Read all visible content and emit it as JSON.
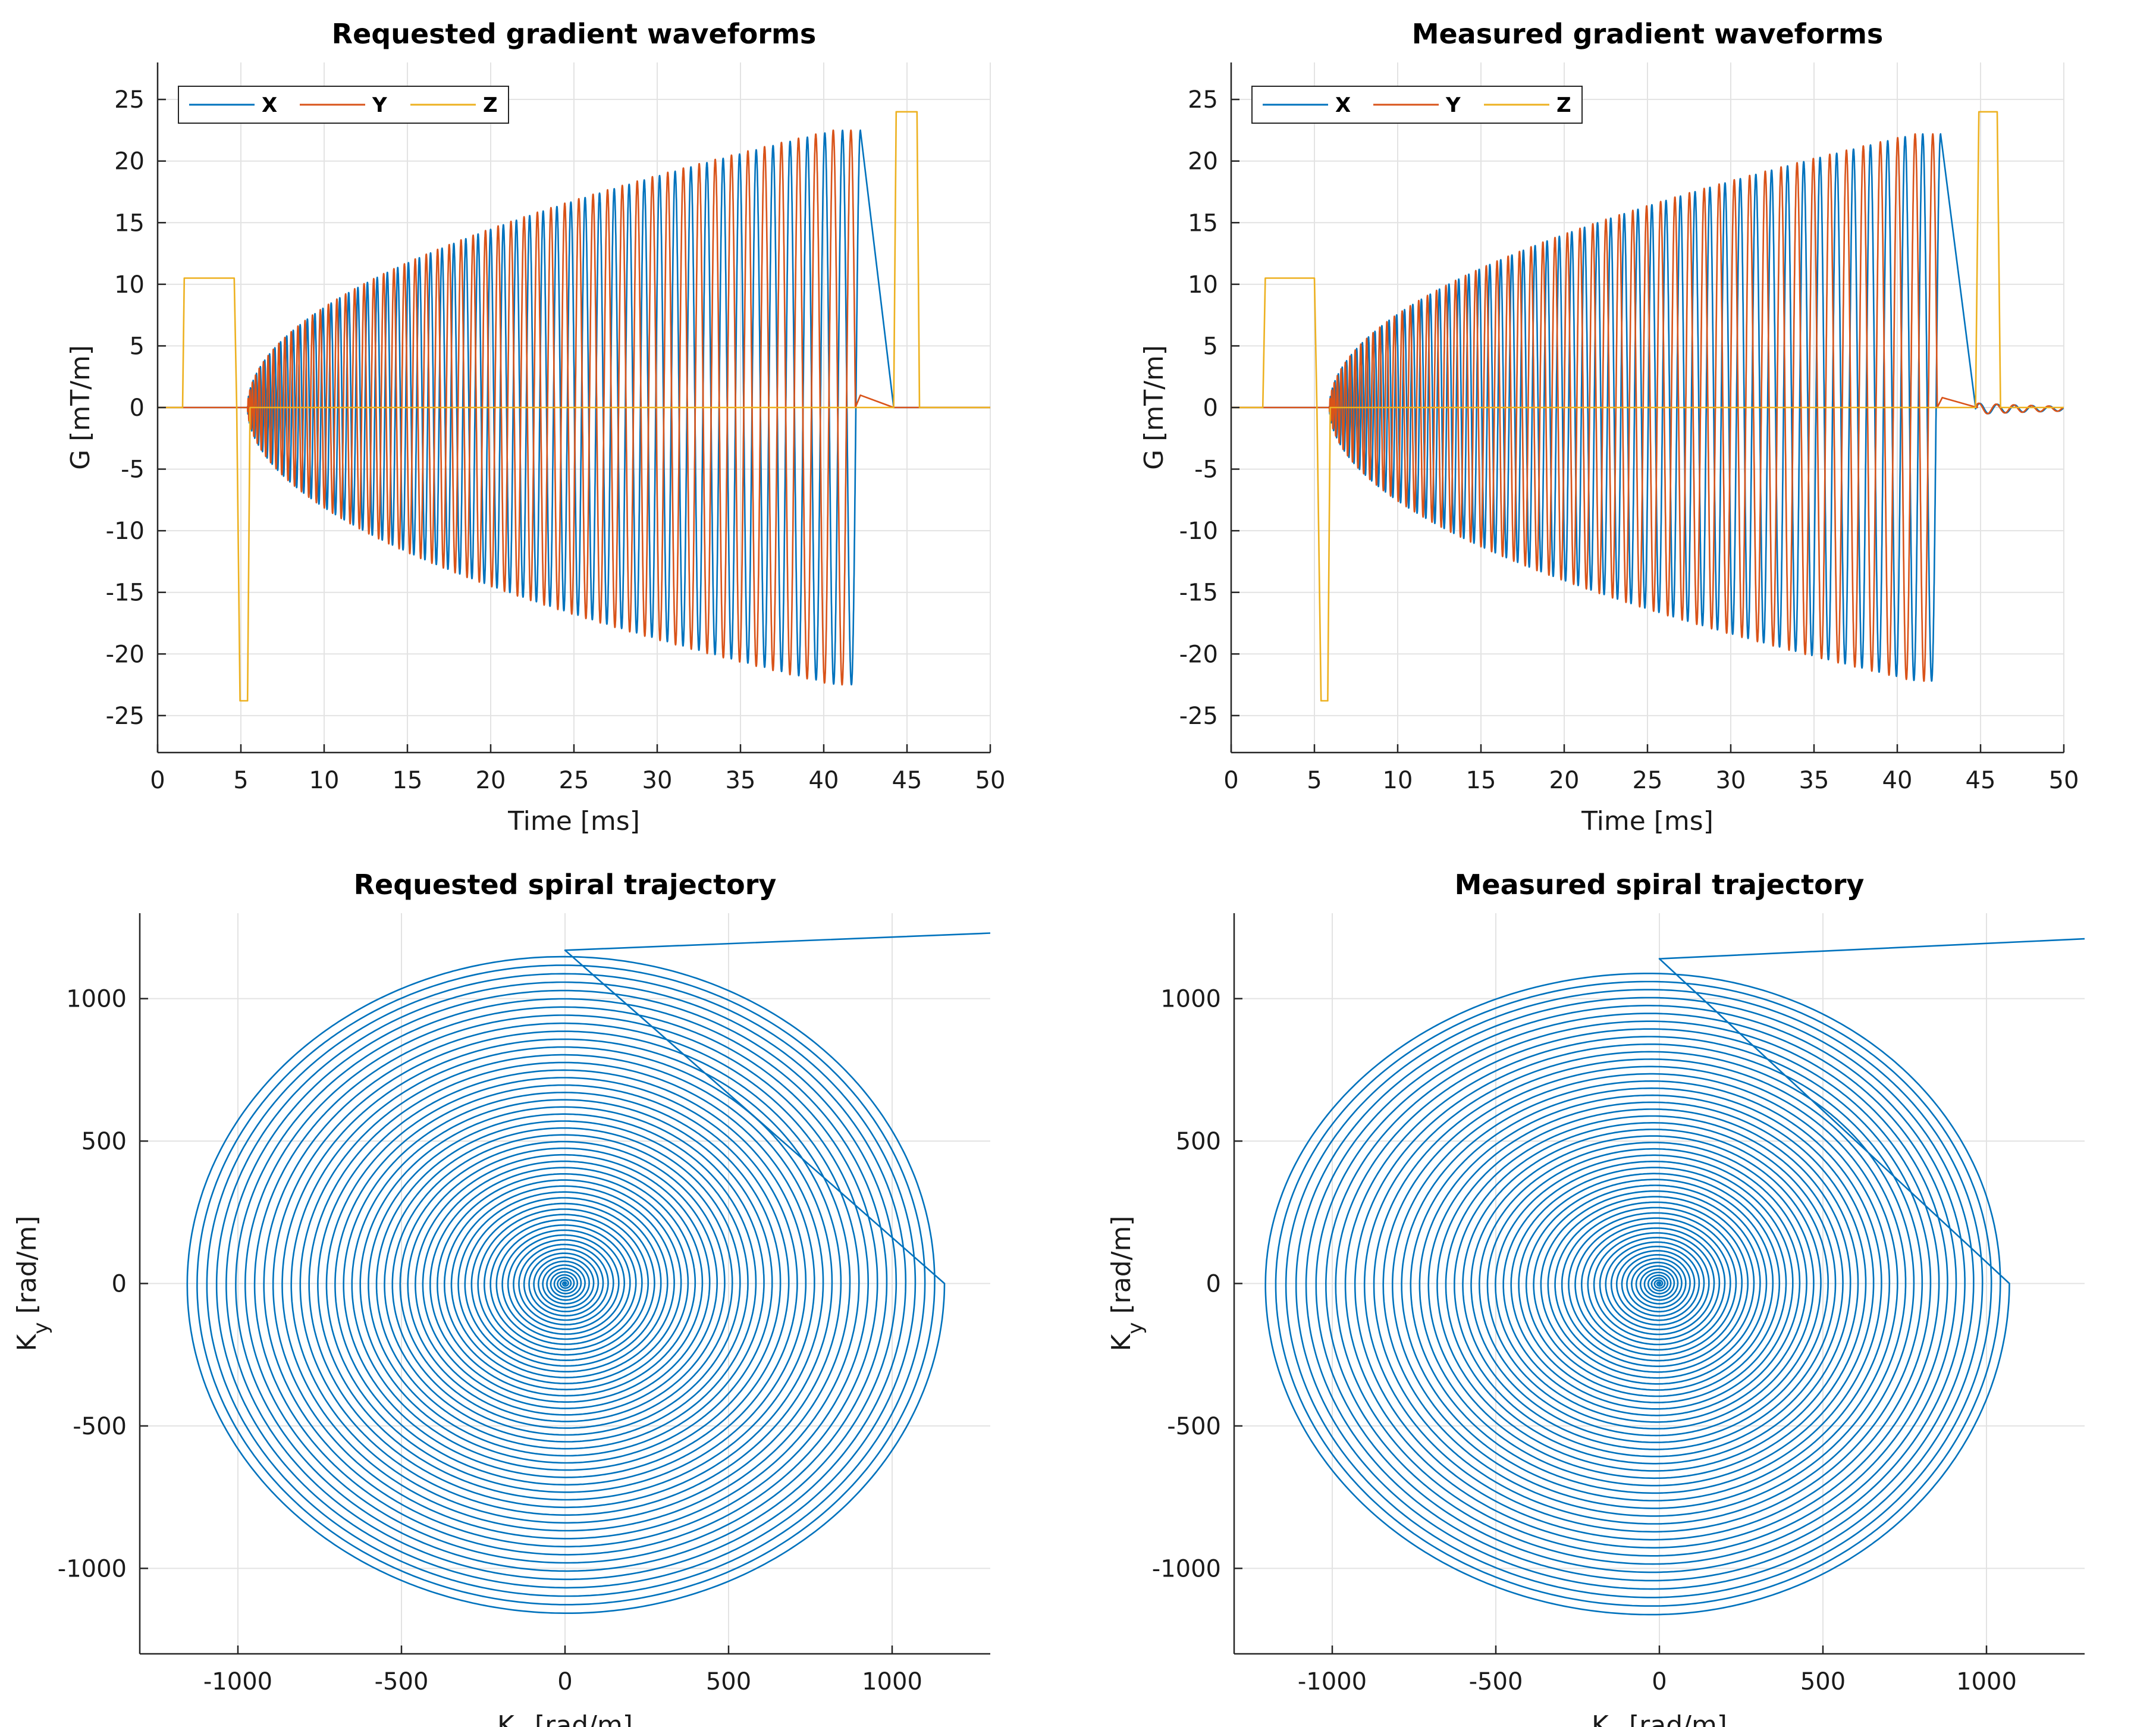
{
  "colors": {
    "x": "#0072BD",
    "y": "#D95319",
    "z": "#EDB120",
    "grid": "#e3e3e3",
    "axis": "#262626"
  },
  "chart_data": [
    {
      "id": "requested-gradients",
      "type": "line",
      "title": "Requested gradient waveforms",
      "xlabel": "Time [ms]",
      "ylabel": "G [mT/m]",
      "xlim": [
        0,
        50
      ],
      "ylim": [
        -28,
        28
      ],
      "xticks": [
        0,
        5,
        10,
        15,
        20,
        25,
        30,
        35,
        40,
        45,
        50
      ],
      "yticks": [
        -25,
        -20,
        -15,
        -10,
        -5,
        0,
        5,
        10,
        15,
        20,
        25
      ],
      "grid": true,
      "legend": "top-left",
      "series": [
        {
          "name": "X",
          "color_key": "x",
          "kind": "spiral-gradient",
          "t_start": 5.4,
          "t_end": 42.2,
          "peak": 22.5,
          "cycles": 55,
          "phase": 0,
          "ramp_down_end": 44.2,
          "tail_value": 0
        },
        {
          "name": "Y",
          "color_key": "y",
          "kind": "spiral-gradient",
          "t_start": 5.4,
          "t_end": 41.9,
          "peak": 22.5,
          "cycles": 55,
          "phase": 1.5708,
          "tail_start": 42.2,
          "tail_value": 1.0,
          "tail_end": 44.2
        },
        {
          "name": "Z",
          "color_key": "z",
          "kind": "trapezoids",
          "points": [
            [
              0,
              0
            ],
            [
              1.5,
              0
            ],
            [
              1.6,
              10.5
            ],
            [
              4.6,
              10.5
            ],
            [
              4.75,
              0
            ],
            [
              4.95,
              -23.8
            ],
            [
              5.4,
              -23.8
            ],
            [
              5.55,
              0
            ],
            [
              44.2,
              0
            ],
            [
              44.35,
              24
            ],
            [
              45.6,
              24
            ],
            [
              45.75,
              0
            ],
            [
              50,
              0
            ]
          ]
        }
      ]
    },
    {
      "id": "measured-gradients",
      "type": "line",
      "title": "Measured gradient waveforms",
      "xlabel": "Time [ms]",
      "ylabel": "G [mT/m]",
      "xlim": [
        0,
        50
      ],
      "ylim": [
        -28,
        28
      ],
      "xticks": [
        0,
        5,
        10,
        15,
        20,
        25,
        30,
        35,
        40,
        45,
        50
      ],
      "yticks": [
        -25,
        -20,
        -15,
        -10,
        -5,
        0,
        5,
        10,
        15,
        20,
        25
      ],
      "grid": true,
      "legend": "top-left",
      "series": [
        {
          "name": "X",
          "color_key": "x",
          "kind": "spiral-gradient",
          "t_start": 5.9,
          "t_end": 42.6,
          "peak": 22.2,
          "cycles": 55,
          "phase": 0,
          "ramp_down_end": 44.7,
          "tail_value": 0,
          "ringing": true
        },
        {
          "name": "Y",
          "color_key": "y",
          "kind": "spiral-gradient",
          "t_start": 5.9,
          "t_end": 42.4,
          "peak": 22.2,
          "cycles": 55,
          "phase": 1.5708,
          "tail_start": 42.7,
          "tail_value": 0.8,
          "tail_end": 44.8,
          "ringing": true
        },
        {
          "name": "Z",
          "color_key": "z",
          "kind": "trapezoids",
          "ringing": true,
          "points": [
            [
              0,
              0
            ],
            [
              1.9,
              0
            ],
            [
              2.05,
              10.5
            ],
            [
              5.0,
              10.5
            ],
            [
              5.15,
              0
            ],
            [
              5.4,
              -23.8
            ],
            [
              5.8,
              -23.8
            ],
            [
              5.95,
              0
            ],
            [
              44.7,
              0
            ],
            [
              44.9,
              24
            ],
            [
              46.0,
              24
            ],
            [
              46.2,
              0
            ],
            [
              50,
              0
            ]
          ]
        }
      ]
    },
    {
      "id": "requested-spiral",
      "type": "line",
      "title": "Requested spiral trajectory",
      "xlabel": "K_x [rad/m]",
      "ylabel": "K_y [rad/m]",
      "xlim": [
        -1300,
        1300
      ],
      "ylim": [
        -1300,
        1300
      ],
      "xticks": [
        -1000,
        -500,
        0,
        500,
        1000
      ],
      "yticks": [
        -1000,
        -500,
        0,
        500,
        1000
      ],
      "grid": true,
      "series": [
        {
          "name": "",
          "color_key": "x",
          "kind": "spiral",
          "turns": 55,
          "rx_left": 1170,
          "rx_right": 1160,
          "ry_top": 1170,
          "ry_bottom": 1165,
          "cx_drift": 0,
          "tail": [
            [
              0,
              1170
            ],
            [
              1300,
              1230
            ]
          ]
        }
      ]
    },
    {
      "id": "measured-spiral",
      "type": "line",
      "title": "Measured spiral trajectory",
      "xlabel": "K_x [rad/m]",
      "ylabel": "K_y [rad/m]",
      "xlim": [
        -1300,
        1300
      ],
      "ylim": [
        -1300,
        1300
      ],
      "xticks": [
        -1000,
        -500,
        0,
        500,
        1000
      ],
      "yticks": [
        -1000,
        -500,
        0,
        500,
        1000
      ],
      "grid": true,
      "series": [
        {
          "name": "",
          "color_key": "x",
          "kind": "spiral",
          "turns": 55,
          "rx_left": 1190,
          "rx_right": 1100,
          "ry_top": 1110,
          "ry_bottom": 1170,
          "cx_drift": -30,
          "tail": [
            [
              0,
              1140
            ],
            [
              1300,
              1210
            ]
          ]
        }
      ]
    }
  ]
}
